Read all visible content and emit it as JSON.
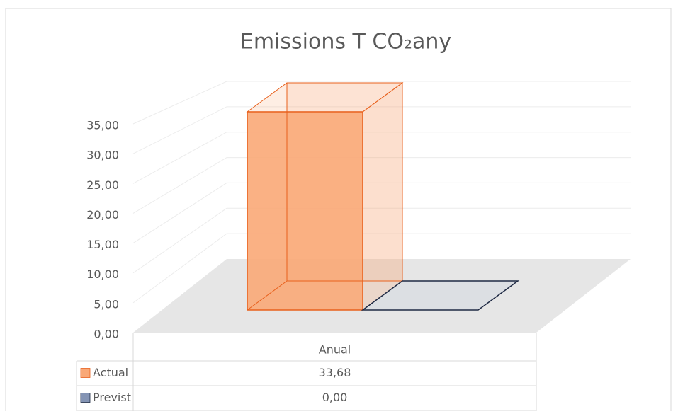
{
  "chart_data": {
    "type": "bar3d",
    "title": "Emissions T CO₂any",
    "categories": [
      "Anual"
    ],
    "series": [
      {
        "name": "Actual",
        "color": "#f9a877",
        "values": [
          33.68
        ],
        "value_labels": [
          "33,68"
        ]
      },
      {
        "name": "Previst",
        "color": "#8494b4",
        "values": [
          0
        ],
        "value_labels": [
          "0,00"
        ]
      }
    ],
    "ylim": [
      0,
      35
    ],
    "yticks": [
      {
        "value": 0,
        "label": "0,00"
      },
      {
        "value": 5,
        "label": "5,00"
      },
      {
        "value": 10,
        "label": "10,00"
      },
      {
        "value": 15,
        "label": "15,00"
      },
      {
        "value": 20,
        "label": "20,00"
      },
      {
        "value": 25,
        "label": "25,00"
      },
      {
        "value": 30,
        "label": "30,00"
      },
      {
        "value": 35,
        "label": "35,00"
      }
    ],
    "grid": true,
    "legend": "table"
  }
}
